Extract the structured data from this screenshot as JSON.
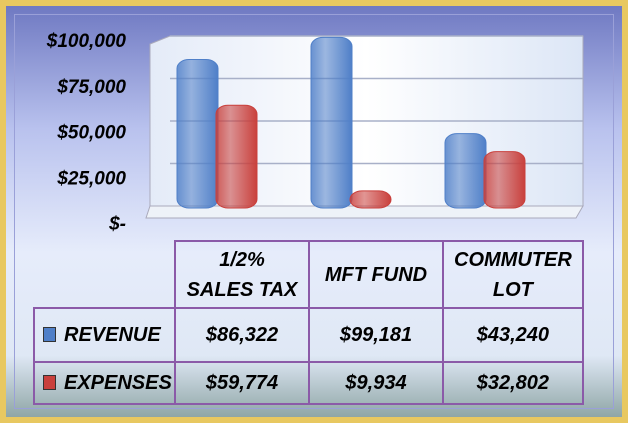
{
  "chart_data": {
    "type": "bar",
    "categories": [
      "1/2% SALES TAX",
      "MFT FUND",
      "COMMUTER LOT"
    ],
    "series": [
      {
        "name": "REVENUE",
        "color": "#4f7fc8",
        "values": [
          86322,
          99181,
          43240
        ],
        "value_labels": [
          "$86,322",
          "$99,181",
          "$43,240"
        ]
      },
      {
        "name": "EXPENSES",
        "color": "#c9403c",
        "values": [
          59774,
          9934,
          32802
        ],
        "value_labels": [
          "$59,774",
          "$9,934",
          "$32,802"
        ]
      }
    ],
    "ylim": [
      0,
      100000
    ],
    "yticks": [
      {
        "value": 0,
        "label": "$-"
      },
      {
        "value": 25000,
        "label": "$25,000"
      },
      {
        "value": 50000,
        "label": "$50,000"
      },
      {
        "value": 75000,
        "label": "$75,000"
      },
      {
        "value": 100000,
        "label": "$100,000"
      }
    ],
    "grid": true
  }
}
